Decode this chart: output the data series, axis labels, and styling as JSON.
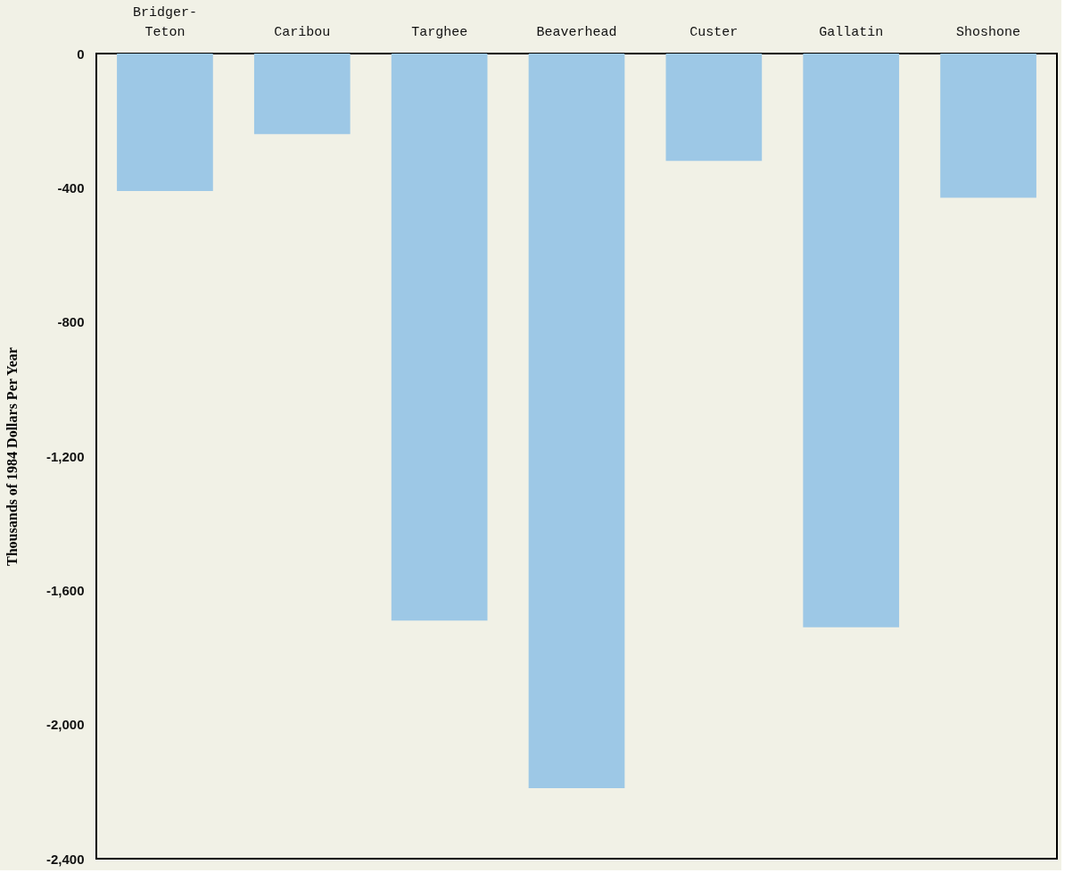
{
  "chart_data": {
    "type": "bar",
    "ylabel": "Thousands of 1984 Dollars Per Year",
    "categories": [
      "Bridger-Teton",
      "Caribou",
      "Targhee",
      "Beaverhead",
      "Custer",
      "Gallatin",
      "Shoshone"
    ],
    "values": [
      -410,
      -240,
      -1690,
      -2190,
      -320,
      -1710,
      -430
    ],
    "color": "#9dc8e6",
    "ylim": [
      -2400,
      0
    ],
    "yticks": [
      0,
      -400,
      -800,
      {
        "value": -1200,
        "label": "-1,200"
      },
      {
        "value": -1600,
        "label": "-1,600"
      },
      {
        "value": -2000,
        "label": "-2,000"
      },
      {
        "value": -2400,
        "label": "-2,400"
      }
    ],
    "grid": false
  }
}
